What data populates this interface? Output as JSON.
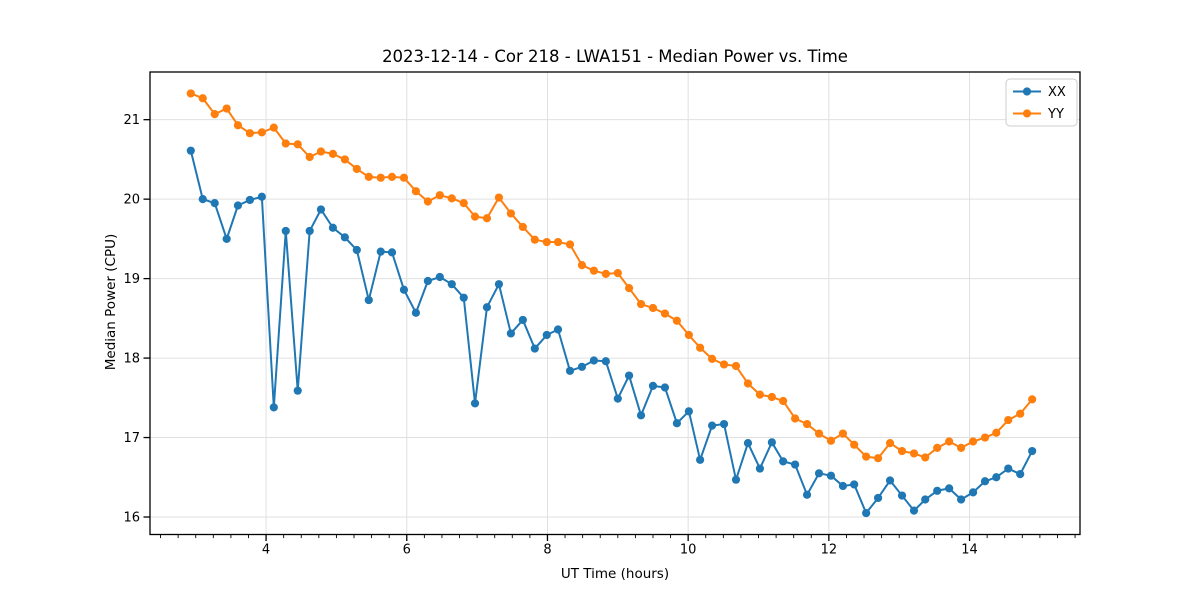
{
  "figure": {
    "title": "2023-12-14 - Cor 218 - LWA151 - Median Power vs. Time"
  },
  "chart_data": {
    "type": "line",
    "title": "2023-12-14 - Cor 218 - LWA151 - Median Power vs. Time",
    "xlabel": "UT Time (hours)",
    "ylabel": "Median Power (CPU)",
    "xlim": [
      2.35,
      15.57
    ],
    "ylim": [
      15.78,
      21.6
    ],
    "xticks": [
      4,
      6,
      8,
      10,
      12,
      14
    ],
    "yticks": [
      16,
      17,
      18,
      19,
      20,
      21
    ],
    "x_minor_tick_step": 0.25,
    "grid": true,
    "legend": {
      "entries": [
        "XX",
        "YY"
      ],
      "position": "upper-right"
    },
    "colors": {
      "XX": "#1f77b4",
      "YY": "#ff7f0e",
      "grid": "#e0e0e0",
      "spine": "#000000",
      "legend_border": "#cccccc"
    },
    "x": [
      2.93,
      3.1,
      3.27,
      3.44,
      3.6,
      3.77,
      3.94,
      4.11,
      4.28,
      4.45,
      4.62,
      4.78,
      4.95,
      5.12,
      5.29,
      5.46,
      5.63,
      5.79,
      5.96,
      6.13,
      6.3,
      6.47,
      6.64,
      6.81,
      6.97,
      7.14,
      7.31,
      7.48,
      7.65,
      7.82,
      7.99,
      8.15,
      8.32,
      8.49,
      8.66,
      8.83,
      9.0,
      9.16,
      9.33,
      9.5,
      9.67,
      9.84,
      10.01,
      10.17,
      10.34,
      10.51,
      10.68,
      10.85,
      11.02,
      11.19,
      11.35,
      11.52,
      11.69,
      11.86,
      12.03,
      12.2,
      12.36,
      12.53,
      12.7,
      12.87,
      13.04,
      13.21,
      13.37,
      13.54,
      13.71,
      13.88,
      14.05,
      14.22,
      14.38,
      14.55,
      14.72,
      14.89
    ],
    "series": [
      {
        "name": "XX",
        "color": "#1f77b4",
        "y": [
          20.61,
          20.0,
          19.95,
          19.5,
          19.92,
          19.99,
          20.03,
          17.38,
          19.6,
          17.59,
          19.6,
          19.87,
          19.64,
          19.52,
          19.36,
          18.73,
          19.34,
          19.33,
          18.86,
          18.57,
          18.97,
          19.02,
          18.93,
          18.76,
          17.43,
          18.64,
          18.93,
          18.31,
          18.48,
          18.12,
          18.29,
          18.36,
          17.84,
          17.89,
          17.97,
          17.96,
          17.49,
          17.78,
          17.28,
          17.65,
          17.63,
          17.18,
          17.33,
          16.72,
          17.15,
          17.17,
          16.47,
          16.93,
          16.61,
          16.94,
          16.7,
          16.66,
          16.28,
          16.55,
          16.52,
          16.39,
          16.41,
          16.05,
          16.24,
          16.46,
          16.27,
          16.08,
          16.22,
          16.33,
          16.36,
          16.22,
          16.31,
          16.45,
          16.5,
          16.61,
          16.54,
          16.83
        ]
      },
      {
        "name": "YY",
        "color": "#ff7f0e",
        "y": [
          21.33,
          21.27,
          21.07,
          21.14,
          20.93,
          20.83,
          20.84,
          20.9,
          20.7,
          20.69,
          20.53,
          20.6,
          20.57,
          20.5,
          20.38,
          20.28,
          20.27,
          20.28,
          20.27,
          20.1,
          19.97,
          20.05,
          20.01,
          19.95,
          19.78,
          19.76,
          20.02,
          19.82,
          19.65,
          19.49,
          19.46,
          19.46,
          19.43,
          19.17,
          19.1,
          19.06,
          19.07,
          18.88,
          18.68,
          18.63,
          18.56,
          18.47,
          18.29,
          18.13,
          17.99,
          17.92,
          17.9,
          17.68,
          17.54,
          17.51,
          17.46,
          17.24,
          17.17,
          17.05,
          16.96,
          17.05,
          16.91,
          16.76,
          16.74,
          16.93,
          16.83,
          16.8,
          16.75,
          16.87,
          16.95,
          16.87,
          16.95,
          17.0,
          17.06,
          17.22,
          17.3,
          17.48
        ]
      }
    ]
  }
}
